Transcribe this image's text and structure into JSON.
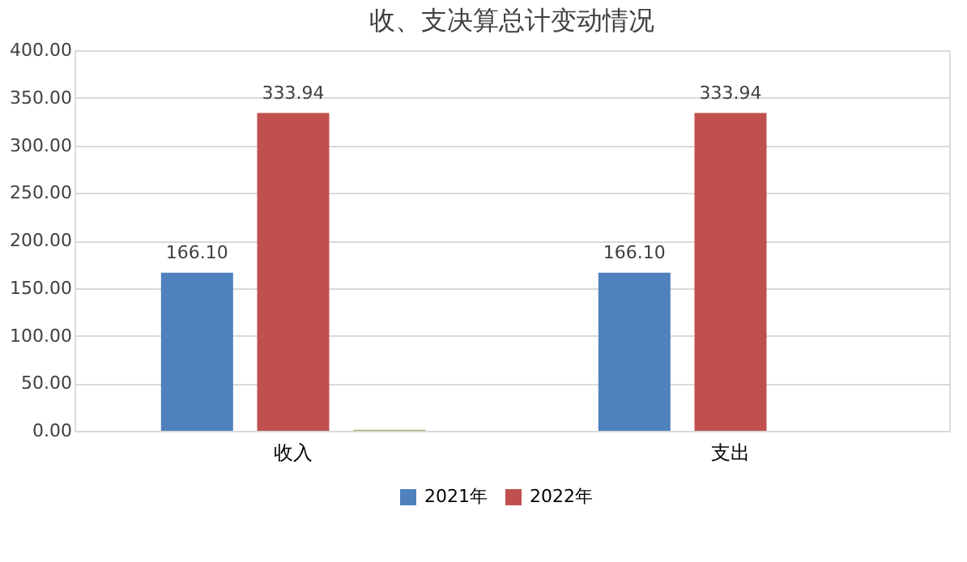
{
  "chart_data": {
    "type": "bar",
    "title": "收、支决算总计变动情况",
    "categories": [
      "收入",
      "支出"
    ],
    "series": [
      {
        "name": "2021年",
        "color": "#4f81bd",
        "values": [
          166.1,
          166.1
        ],
        "value_labels": [
          "166.10",
          "166.10"
        ]
      },
      {
        "name": "2022年",
        "color": "#c0504d",
        "values": [
          333.94,
          333.94
        ],
        "value_labels": [
          "333.94",
          "333.94"
        ]
      },
      {
        "color": "#9bbb59",
        "values": [
          1,
          null
        ]
      }
    ],
    "ylim": [
      0,
      400
    ],
    "yticks": [
      {
        "value": 0,
        "label": "0.00"
      },
      {
        "value": 50,
        "label": "50.00"
      },
      {
        "value": 100,
        "label": "100.00"
      },
      {
        "value": 150,
        "label": "150.00"
      },
      {
        "value": 200,
        "label": "200.00"
      },
      {
        "value": 250,
        "label": "250.00"
      },
      {
        "value": 300,
        "label": "300.00"
      },
      {
        "value": 350,
        "label": "350.00"
      },
      {
        "value": 400,
        "label": "400.00"
      }
    ],
    "grid": "y",
    "legend": "bottom"
  }
}
